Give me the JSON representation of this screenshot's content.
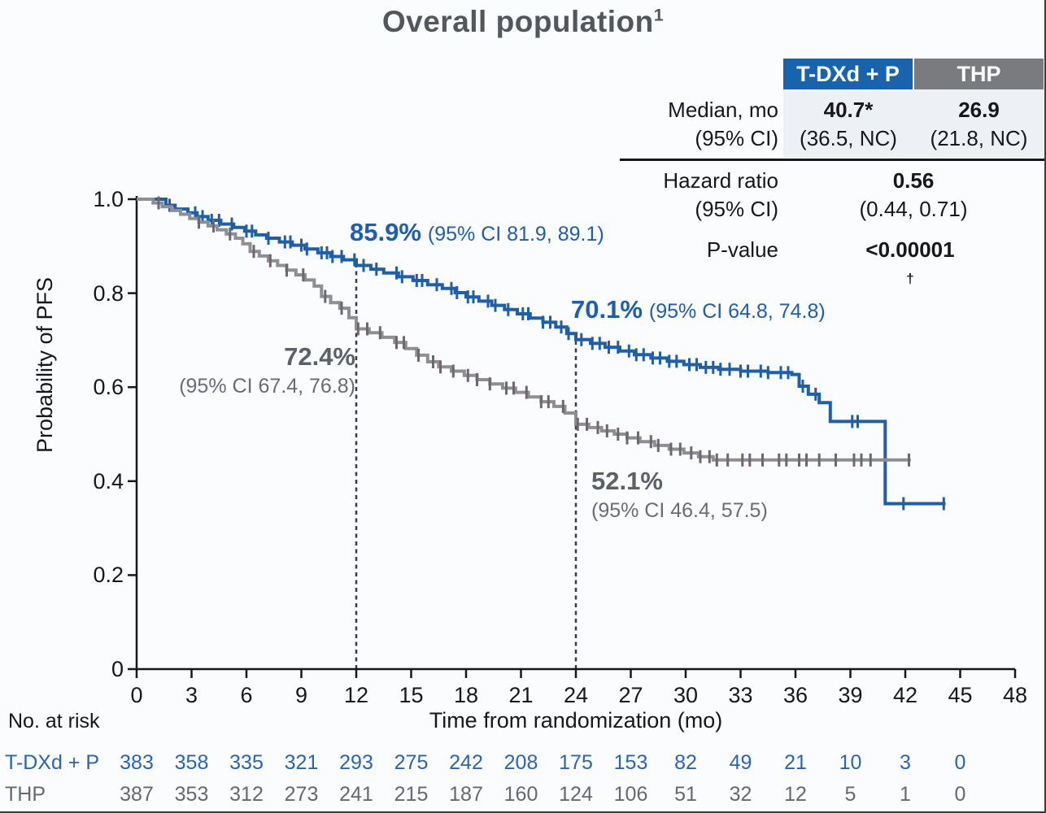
{
  "title": {
    "text": "Overall population",
    "superscript": "1"
  },
  "stats_table": {
    "columns": [
      "T-DXd + P",
      "THP"
    ],
    "median": {
      "label_line1": "Median, mo",
      "label_line2": "(95% CI)",
      "tdxd_value": "40.7*",
      "tdxd_ci": "(36.5, NC)",
      "thp_value": "26.9",
      "thp_ci": "(21.8, NC)"
    },
    "hazard_ratio": {
      "label_line1": "Hazard ratio",
      "label_line2": "(95% CI)",
      "value": "0.56",
      "ci": "(0.44, 0.71)"
    },
    "p_value": {
      "label": "P-value",
      "value": "<0.00001",
      "dagger": "†"
    }
  },
  "chart_data": {
    "type": "line",
    "subtype": "kaplan_meier_step",
    "title": "Overall population",
    "xlabel": "Time from randomization (mo)",
    "ylabel": "Probability of PFS",
    "xlim": [
      0,
      48
    ],
    "ylim": [
      0,
      1.0
    ],
    "grid": false,
    "xticks": [
      0,
      3,
      6,
      9,
      12,
      15,
      18,
      21,
      24,
      27,
      30,
      33,
      36,
      39,
      42,
      45,
      48
    ],
    "yticks": [
      {
        "value": 1.0,
        "label": "1.0"
      },
      {
        "value": 0.8,
        "label": "0.8"
      },
      {
        "value": 0.6,
        "label": "0.6"
      },
      {
        "value": 0.4,
        "label": "0.4"
      },
      {
        "value": 0.2,
        "label": "0.2"
      },
      {
        "value": 0.0,
        "label": "0"
      }
    ],
    "reference_lines": [
      {
        "x": 12,
        "y_top": 0.859
      },
      {
        "x": 24,
        "y_top": 0.701
      }
    ],
    "landmarks": [
      {
        "series": "T-DXd + P",
        "month": 12,
        "rate": "85.9%",
        "ci": "(95% CI 81.9, 89.1)"
      },
      {
        "series": "T-DXd + P",
        "month": 24,
        "rate": "70.1%",
        "ci": "(95% CI 64.8, 74.8)"
      },
      {
        "series": "THP",
        "month": 12,
        "rate": "72.4%",
        "ci": "(95% CI 67.4, 76.8)"
      },
      {
        "series": "THP",
        "month": 24,
        "rate": "52.1%",
        "ci": "(95% CI 46.4, 57.5)"
      }
    ],
    "series": [
      {
        "name": "T-DXd + P",
        "color": "#1e5fac",
        "censor_color": "#1e5fac",
        "steps": [
          [
            0,
            1.0
          ],
          [
            1.6,
            0.987
          ],
          [
            2.1,
            0.979
          ],
          [
            2.8,
            0.971
          ],
          [
            3.3,
            0.963
          ],
          [
            3.9,
            0.955
          ],
          [
            4.6,
            0.947
          ],
          [
            5.3,
            0.94
          ],
          [
            5.9,
            0.932
          ],
          [
            6.5,
            0.924
          ],
          [
            7.1,
            0.917
          ],
          [
            7.8,
            0.909
          ],
          [
            8.5,
            0.902
          ],
          [
            9.2,
            0.894
          ],
          [
            9.9,
            0.886
          ],
          [
            10.6,
            0.878
          ],
          [
            11.3,
            0.871
          ],
          [
            12,
            0.859
          ],
          [
            12.8,
            0.851
          ],
          [
            13.5,
            0.843
          ],
          [
            14.3,
            0.835
          ],
          [
            15.1,
            0.827
          ],
          [
            15.9,
            0.818
          ],
          [
            16.7,
            0.81
          ],
          [
            17.4,
            0.801
          ],
          [
            18,
            0.792
          ],
          [
            18.7,
            0.783
          ],
          [
            19.4,
            0.774
          ],
          [
            20.1,
            0.765
          ],
          [
            20.8,
            0.756
          ],
          [
            21.5,
            0.747
          ],
          [
            22.2,
            0.738
          ],
          [
            22.9,
            0.728
          ],
          [
            23.5,
            0.714
          ],
          [
            24,
            0.701
          ],
          [
            24.8,
            0.693
          ],
          [
            25.6,
            0.685
          ],
          [
            26.4,
            0.677
          ],
          [
            27.2,
            0.669
          ],
          [
            28.1,
            0.662
          ],
          [
            29,
            0.655
          ],
          [
            29.9,
            0.648
          ],
          [
            30.8,
            0.642
          ],
          [
            31.8,
            0.638
          ],
          [
            33,
            0.634
          ],
          [
            34.5,
            0.631
          ],
          [
            35.8,
            0.627
          ],
          [
            36.2,
            0.602
          ],
          [
            36.7,
            0.585
          ],
          [
            37.3,
            0.567
          ],
          [
            37.9,
            0.527
          ],
          [
            40.9,
            0.352
          ],
          [
            44.2,
            0.352
          ]
        ],
        "censors": [
          1.8,
          3.2,
          3.6,
          4.1,
          4.5,
          5.2,
          6.0,
          6.3,
          7.2,
          8.1,
          8.4,
          9.0,
          9.3,
          10.1,
          10.4,
          10.7,
          11.2,
          11.9,
          12.4,
          13.1,
          14.2,
          14.5,
          15.3,
          15.6,
          16.4,
          17.2,
          17.5,
          18.1,
          18.4,
          19.2,
          19.6,
          20.3,
          21.1,
          21.4,
          22.2,
          22.6,
          23.2,
          23.6,
          24.3,
          24.9,
          25.3,
          25.8,
          26.3,
          26.9,
          27.3,
          27.7,
          28.2,
          28.6,
          29.1,
          29.5,
          30.2,
          30.6,
          31.1,
          31.5,
          31.9,
          32.4,
          33.0,
          33.4,
          34.1,
          34.5,
          35.2,
          35.6,
          36.4,
          37.1,
          39.1,
          39.4,
          41.9,
          44.1
        ]
      },
      {
        "name": "THP",
        "color": "#8e8e93",
        "censor_color": "#6f6672",
        "steps": [
          [
            0,
            1.0
          ],
          [
            0.9,
            0.992
          ],
          [
            1.4,
            0.984
          ],
          [
            1.9,
            0.976
          ],
          [
            2.4,
            0.968
          ],
          [
            2.9,
            0.959
          ],
          [
            3.4,
            0.951
          ],
          [
            3.9,
            0.943
          ],
          [
            4.4,
            0.935
          ],
          [
            4.9,
            0.926
          ],
          [
            5.4,
            0.917
          ],
          [
            5.8,
            0.905
          ],
          [
            6.2,
            0.889
          ],
          [
            6.7,
            0.879
          ],
          [
            7.2,
            0.869
          ],
          [
            7.7,
            0.859
          ],
          [
            8.2,
            0.849
          ],
          [
            8.7,
            0.839
          ],
          [
            9.2,
            0.828
          ],
          [
            9.7,
            0.815
          ],
          [
            10.1,
            0.793
          ],
          [
            10.6,
            0.78
          ],
          [
            11.1,
            0.768
          ],
          [
            11.6,
            0.748
          ],
          [
            12,
            0.724
          ],
          [
            12.7,
            0.716
          ],
          [
            13.4,
            0.706
          ],
          [
            14.1,
            0.695
          ],
          [
            14.7,
            0.682
          ],
          [
            15.3,
            0.668
          ],
          [
            15.9,
            0.654
          ],
          [
            16.5,
            0.643
          ],
          [
            17.2,
            0.634
          ],
          [
            17.9,
            0.625
          ],
          [
            18.6,
            0.616
          ],
          [
            19.3,
            0.607
          ],
          [
            20,
            0.598
          ],
          [
            20.7,
            0.589
          ],
          [
            21.4,
            0.579
          ],
          [
            22.1,
            0.569
          ],
          [
            22.8,
            0.559
          ],
          [
            23.4,
            0.545
          ],
          [
            24,
            0.521
          ],
          [
            24.7,
            0.514
          ],
          [
            25.4,
            0.507
          ],
          [
            26.1,
            0.5
          ],
          [
            26.8,
            0.492
          ],
          [
            27.5,
            0.484
          ],
          [
            28.3,
            0.476
          ],
          [
            29.1,
            0.468
          ],
          [
            29.9,
            0.46
          ],
          [
            30.7,
            0.452
          ],
          [
            31.5,
            0.445
          ],
          [
            42.3,
            0.445
          ]
        ],
        "censors": [
          1.2,
          3.4,
          4.2,
          5.1,
          6.4,
          7.3,
          8.2,
          9.1,
          10.3,
          11.2,
          12.1,
          12.6,
          13.3,
          14.2,
          14.6,
          15.4,
          16.2,
          16.6,
          17.3,
          18.1,
          18.6,
          19.3,
          20.2,
          20.6,
          21.3,
          22.1,
          22.5,
          23.3,
          24.1,
          24.6,
          25.2,
          25.7,
          26.3,
          26.8,
          27.4,
          28.1,
          28.5,
          29.2,
          29.7,
          30.3,
          30.8,
          31.3,
          31.7,
          32.3,
          33.1,
          33.5,
          34.2,
          35.1,
          35.5,
          36.2,
          36.6,
          37.3,
          38.2,
          39.2,
          39.6,
          40.1,
          42.2
        ]
      }
    ],
    "no_at_risk": {
      "label": "No. at risk",
      "months": [
        0,
        3,
        6,
        9,
        12,
        15,
        18,
        21,
        24,
        27,
        30,
        33,
        36,
        39,
        42,
        45
      ],
      "rows": [
        {
          "name": "T-DXd + P",
          "color": "#2766b3",
          "values": [
            383,
            358,
            335,
            321,
            293,
            275,
            242,
            208,
            175,
            153,
            82,
            49,
            21,
            10,
            3,
            0
          ]
        },
        {
          "name": "THP",
          "color": "#6b6671",
          "values": [
            387,
            353,
            312,
            273,
            241,
            215,
            187,
            160,
            124,
            106,
            51,
            32,
            12,
            5,
            1,
            0
          ]
        }
      ]
    }
  }
}
